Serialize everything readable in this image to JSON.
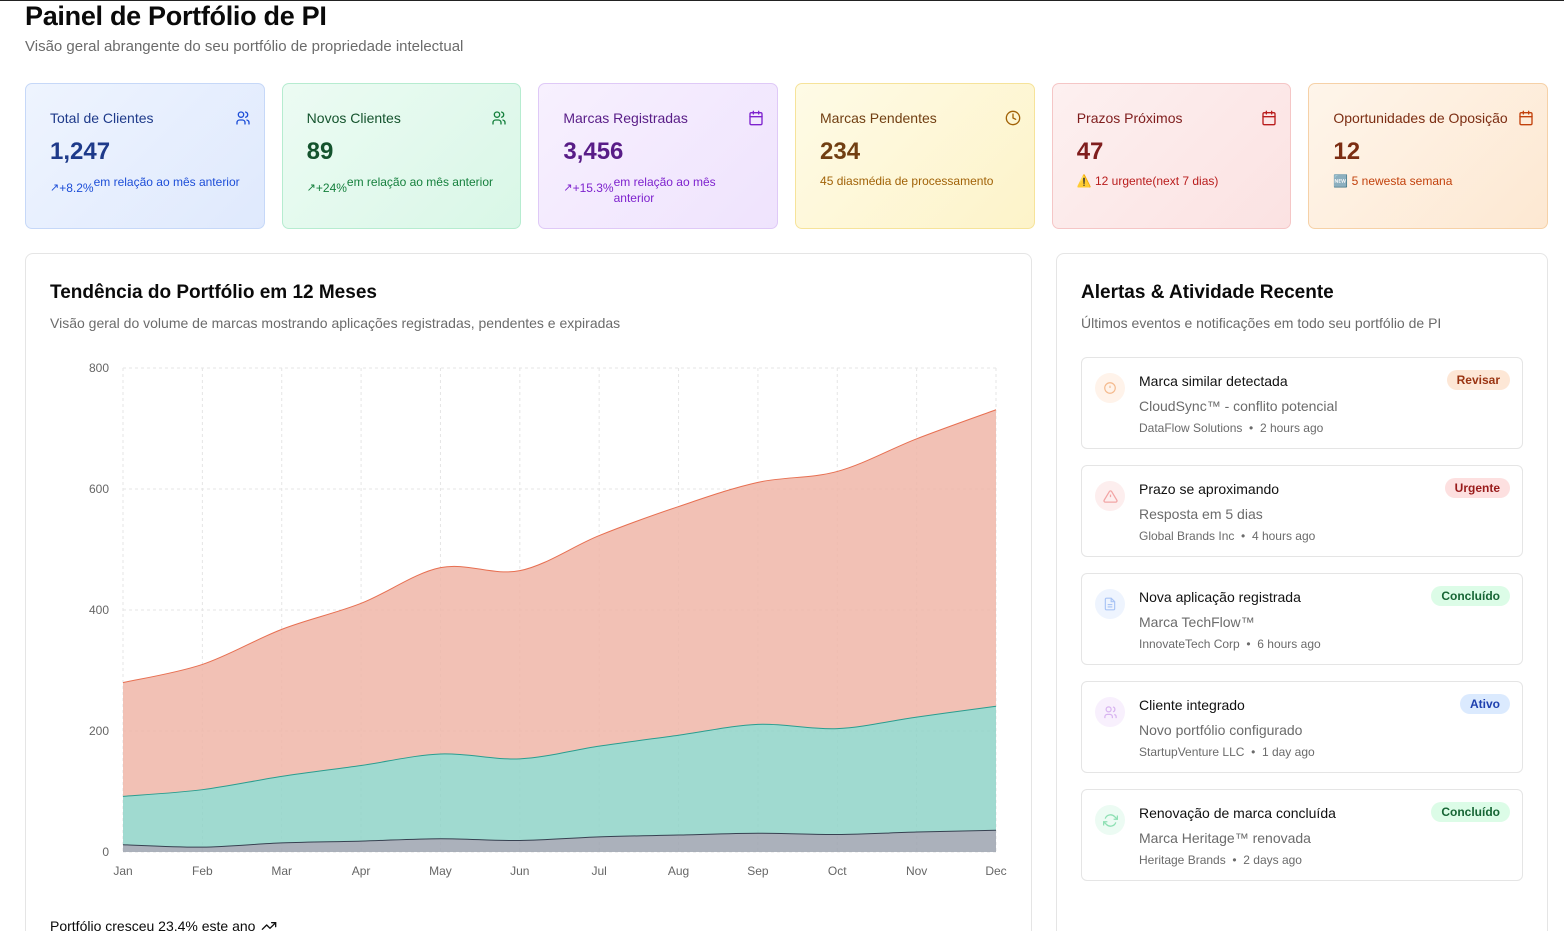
{
  "header": {
    "title": "Painel de Portfólio de PI",
    "subtitle": "Visão geral abrangente do seu portfólio de propriedade intelectual"
  },
  "cards": [
    {
      "label": "Total de Clientes",
      "icon": "users-icon",
      "value": "1,247",
      "arrow": "↗",
      "pct": "+8.2%",
      "text": "em relação ao mês anterior"
    },
    {
      "label": "Novos Clientes",
      "icon": "users-icon",
      "value": "89",
      "arrow": "↗",
      "pct": "+24%",
      "text": "em relação ao mês anterior"
    },
    {
      "label": "Marcas Registradas",
      "icon": "calendar-icon",
      "value": "3,456",
      "arrow": "↗",
      "pct": "+15.3%",
      "text": "em relação ao mês anterior"
    },
    {
      "label": "Marcas Pendentes",
      "icon": "clock-icon",
      "value": "234",
      "text": "45 diasmédia de processamento"
    },
    {
      "label": "Prazos Próximos",
      "icon": "calendar-icon",
      "value": "47",
      "text": "⚠️ 12 urgente(next 7 dias)"
    },
    {
      "label": "Oportunidades de Oposição",
      "icon": "calendar-icon",
      "value": "12",
      "text": "🆕 5 newesta semana"
    }
  ],
  "chart_panel": {
    "title": "Tendência do Portfólio em 12 Meses",
    "description": "Visão geral do volume de marcas mostrando aplicações registradas, pendentes e expiradas",
    "footer": "Portfólio cresceu 23.4% este ano"
  },
  "chart_data": {
    "type": "area",
    "stacked": true,
    "categories": [
      "Jan",
      "Feb",
      "Mar",
      "Apr",
      "May",
      "Jun",
      "Jul",
      "Aug",
      "Sep",
      "Oct",
      "Nov",
      "Dec"
    ],
    "ylim": [
      0,
      800
    ],
    "yticks": [
      0,
      200,
      400,
      600,
      800
    ],
    "grid": true,
    "series": [
      {
        "values": [
          12,
          8,
          15,
          18,
          22,
          19,
          25,
          28,
          31,
          29,
          33,
          36
        ],
        "color": "#9ca3af",
        "stroke": "#374151"
      },
      {
        "values": [
          80,
          95,
          110,
          125,
          140,
          135,
          150,
          165,
          180,
          175,
          190,
          205
        ],
        "color": "#8fd3c8",
        "stroke": "#2a9d8f"
      },
      {
        "values": [
          188,
          207,
          243,
          268,
          308,
          311,
          348,
          378,
          400,
          425,
          460,
          490
        ],
        "color": "#f0b6a8",
        "stroke": "#e76f51"
      }
    ]
  },
  "alerts_panel": {
    "title": "Alertas & Atividade Recente",
    "description": "Últimos eventos e notificações em todo seu portfólio de PI",
    "items": [
      {
        "icon": "shield-icon",
        "title": "Marca similar detectada",
        "desc": "CloudSync™ - conflito potencial",
        "client": "DataFlow Solutions",
        "time": "2 hours ago",
        "badge": "Revisar"
      },
      {
        "icon": "warning-icon",
        "title": "Prazo se aproximando",
        "desc": "Resposta em 5 dias",
        "client": "Global Brands Inc",
        "time": "4 hours ago",
        "badge": "Urgente"
      },
      {
        "icon": "document-icon",
        "title": "Nova aplicação registrada",
        "desc": "Marca TechFlow™",
        "client": "InnovateTech Corp",
        "time": "6 hours ago",
        "badge": "Concluído"
      },
      {
        "icon": "users-icon",
        "title": "Cliente integrado",
        "desc": "Novo portfólio configurado",
        "client": "StartupVenture LLC",
        "time": "1 day ago",
        "badge": "Ativo"
      },
      {
        "icon": "refresh-icon",
        "title": "Renovação de marca concluída",
        "desc": "Marca Heritage™ renovada",
        "client": "Heritage Brands",
        "time": "2 days ago",
        "badge": "Concluído"
      }
    ]
  }
}
